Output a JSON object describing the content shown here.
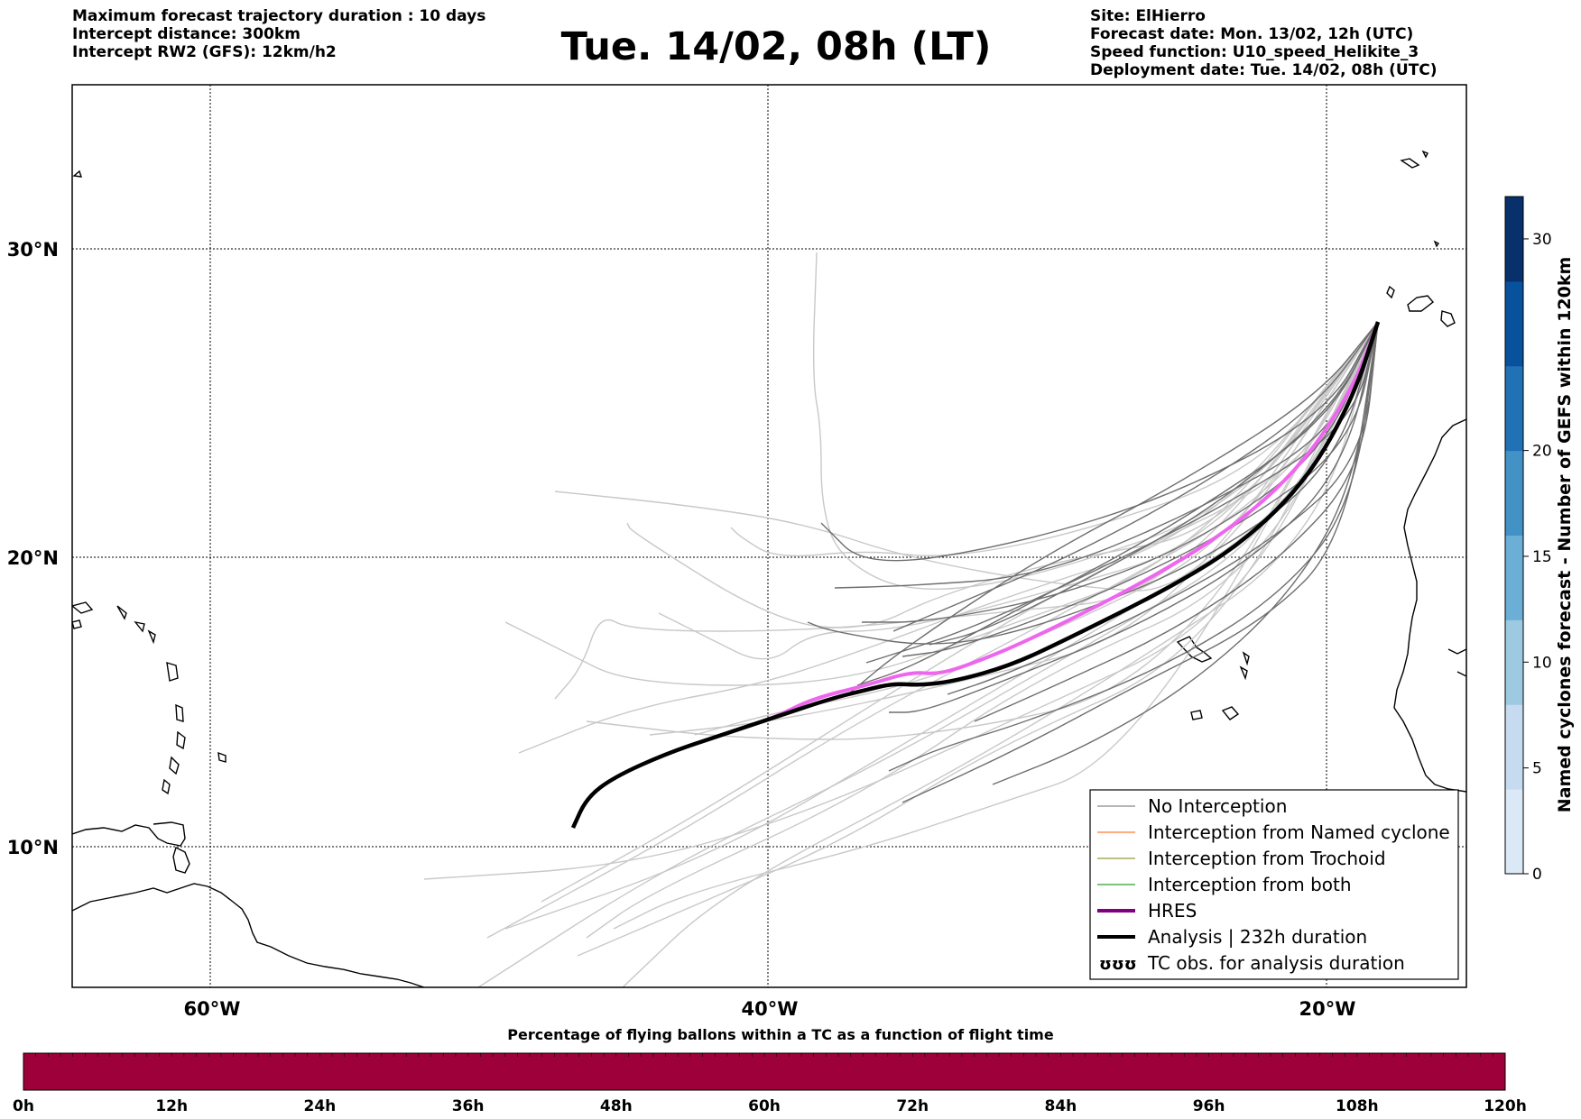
{
  "header": {
    "left_lines": [
      "Maximum forecast trajectory duration : 10 days",
      "Intercept distance: 300km",
      "Intercept RW2 (GFS):  12km/h2"
    ],
    "title": "Tue. 14/02, 08h (LT)",
    "right_lines": [
      "Site: ElHierro",
      "Forecast date: Mon. 13/02, 12h (UTC)",
      "Speed function: U10_speed_Helikite_3",
      "Deployment date: Tue. 14/02, 08h (UTC)"
    ]
  },
  "map": {
    "lon_ticks": [
      "60°W",
      "40°W",
      "20°W"
    ],
    "lat_ticks": [
      "30°N",
      "20°N",
      "10°N"
    ]
  },
  "legend": {
    "items": [
      {
        "label": "No Interception",
        "color": "#6e6e6e",
        "width": 1
      },
      {
        "label": "Interception from Named cyclone",
        "color": "#ff5a00",
        "width": 1
      },
      {
        "label": "Interception from Trochoid",
        "color": "#808000",
        "width": 1
      },
      {
        "label": "Interception from both",
        "color": "#008000",
        "width": 1
      },
      {
        "label": "HRES",
        "color": "#800080",
        "width": 4
      },
      {
        "label": "Analysis | 232h duration",
        "color": "#000000",
        "width": 4
      },
      {
        "label": "TC obs. for analysis duration",
        "icon": "cyclone-symbols-icon",
        "symbols": "ʊʊʊ"
      }
    ]
  },
  "colorbar_right": {
    "label": "Named cyclones forecast - Number of GEFS within 120km",
    "ticks": [
      "0",
      "5",
      "10",
      "15",
      "20",
      "30"
    ],
    "colors": [
      "#dbe9f6",
      "#c6dbef",
      "#9ecae1",
      "#6baed6",
      "#4292c6",
      "#2171b5",
      "#08519c",
      "#08306b"
    ]
  },
  "colorbar_bottom": {
    "title": "Percentage of flying ballons within a TC as a function of flight time",
    "ticks": [
      "0h",
      "12h",
      "24h",
      "36h",
      "48h",
      "60h",
      "72h",
      "84h",
      "96h",
      "108h",
      "120h"
    ],
    "fill_color": "#9e003a"
  }
}
